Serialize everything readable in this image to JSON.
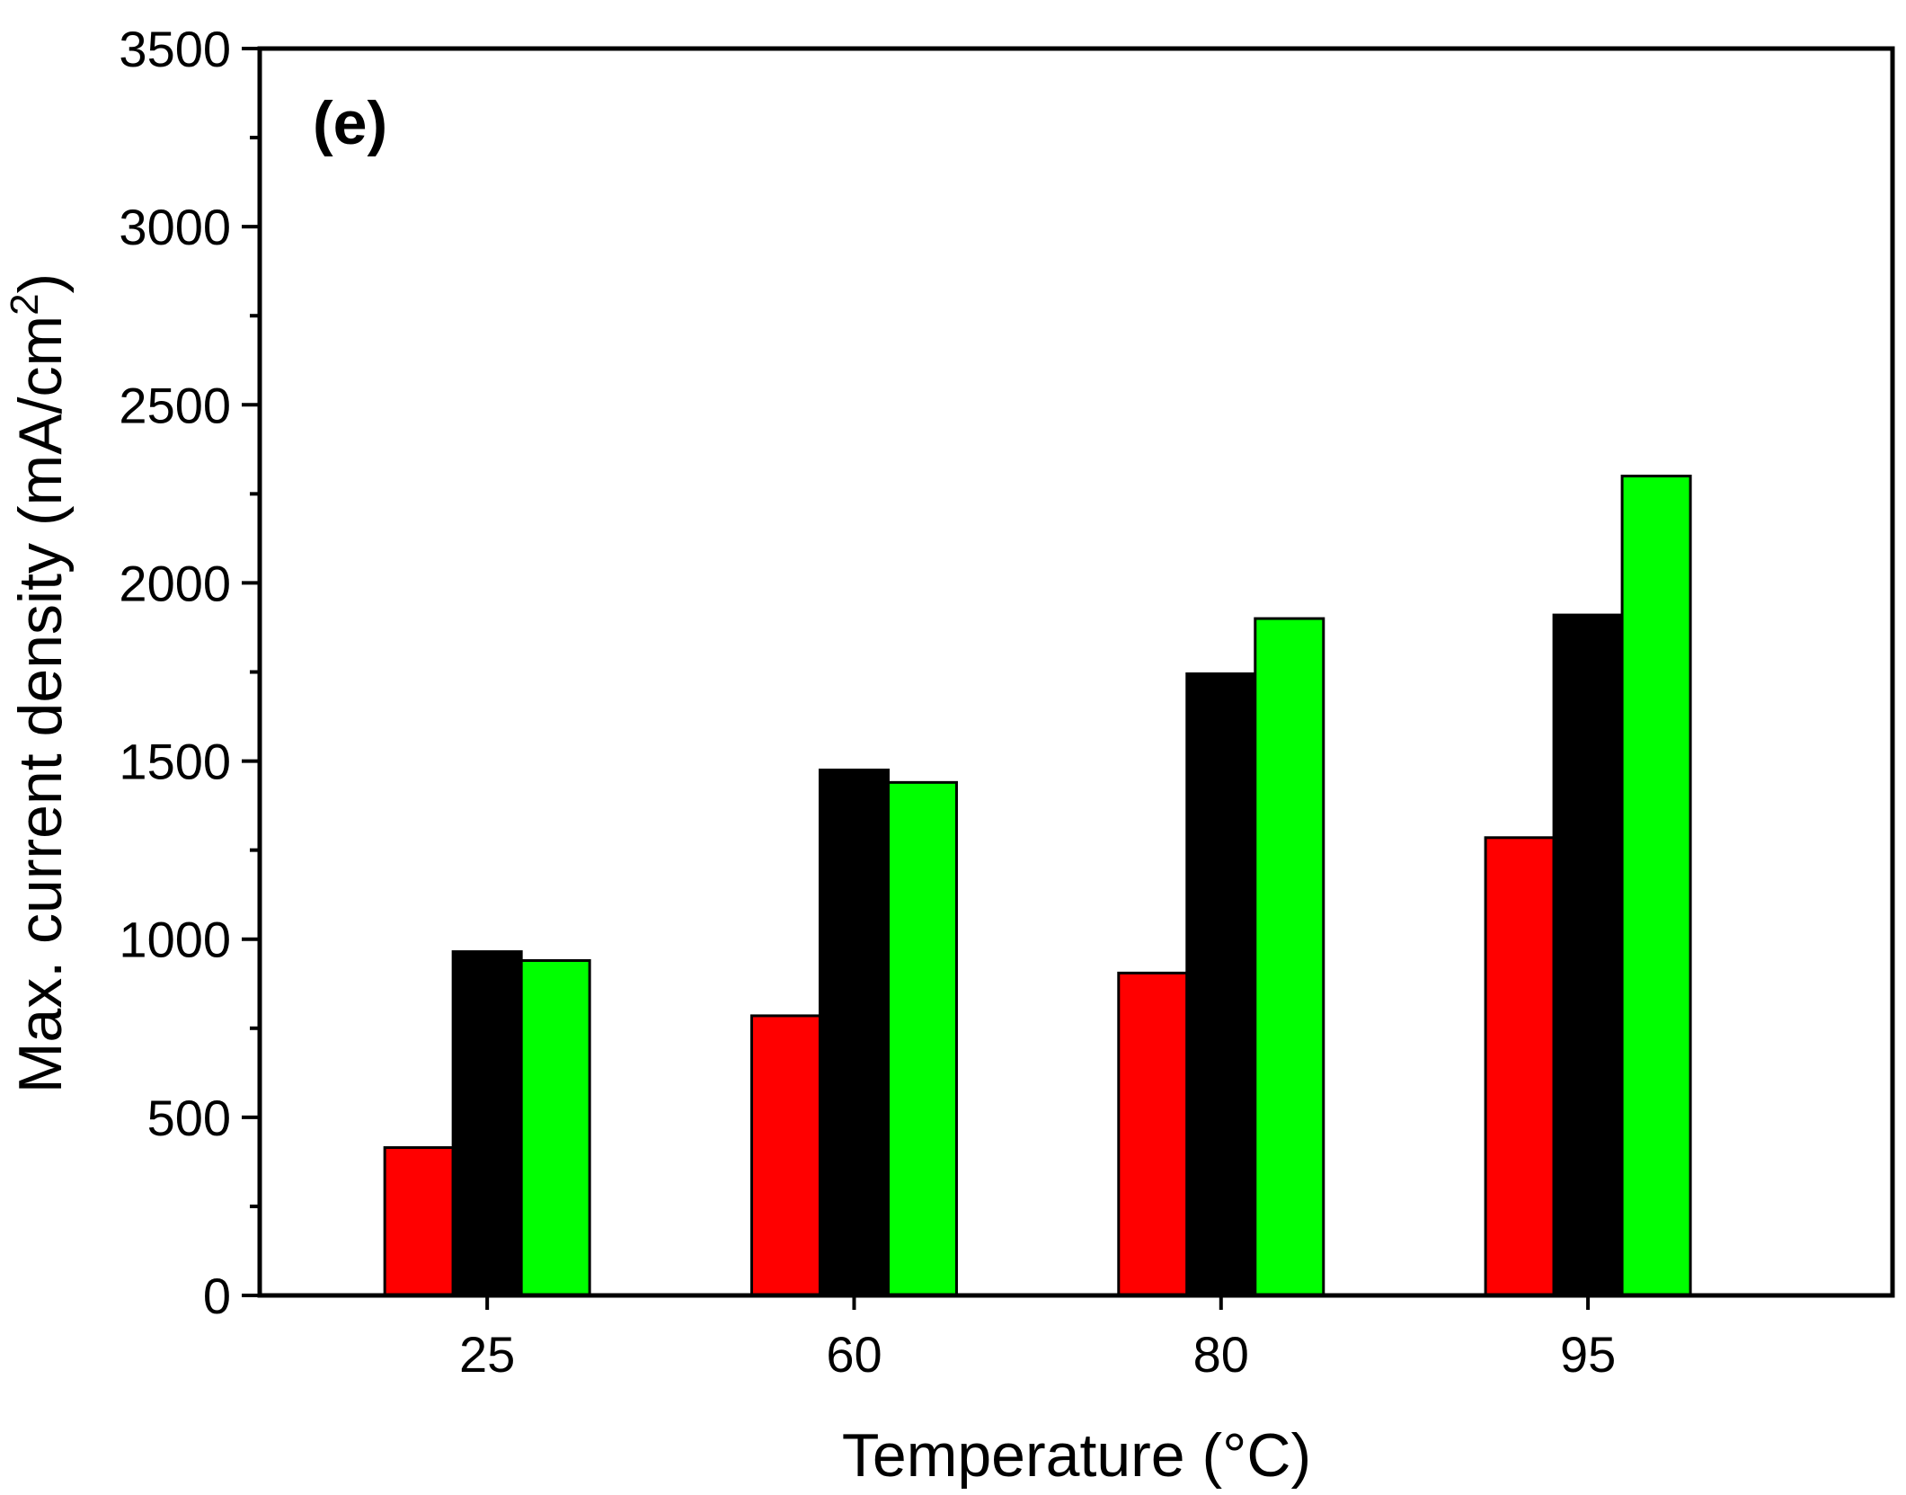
{
  "chart_data": {
    "type": "bar",
    "panel_label": "(e)",
    "categories": [
      "25",
      "60",
      "80",
      "95"
    ],
    "series": [
      {
        "name": "series-red",
        "color": "#ff0000",
        "values": [
          415,
          785,
          905,
          1285
        ]
      },
      {
        "name": "series-black",
        "color": "#000000",
        "values": [
          965,
          1475,
          1745,
          1910
        ]
      },
      {
        "name": "series-green",
        "color": "#00ff00",
        "values": [
          940,
          1440,
          1900,
          2300
        ]
      }
    ],
    "xlabel": "Temperature (°C)",
    "ylabel_main": "Max. current density (mA/cm",
    "ylabel_sup": "2",
    "ylabel_end": ")",
    "ylim": [
      0,
      3500
    ],
    "yticks": [
      "0",
      "500",
      "1000",
      "1500",
      "2000",
      "2500",
      "3000",
      "3500"
    ],
    "grid": false,
    "legend": "none"
  }
}
